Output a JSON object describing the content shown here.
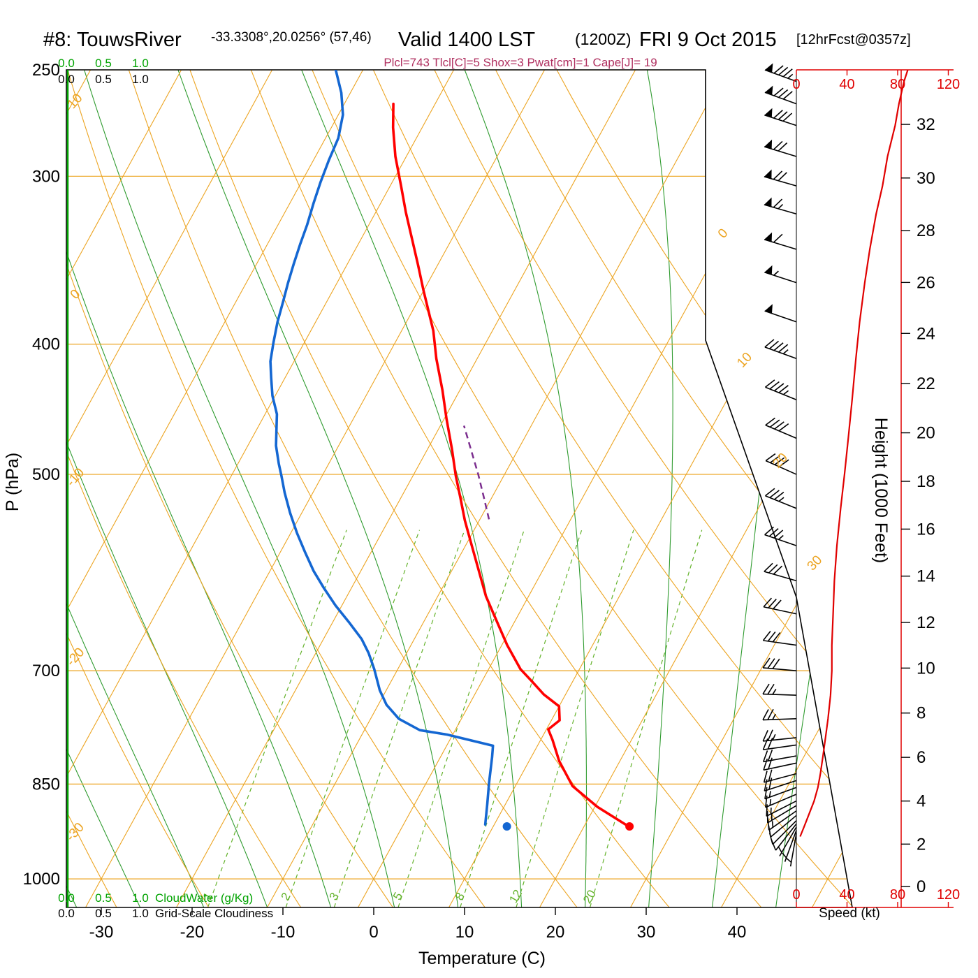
{
  "header": {
    "station": "#8: TouwsRiver",
    "coords": "-33.3308°,20.0256° (57,46)",
    "valid": "Valid 1400 LST",
    "valid_z": "(1200Z)",
    "date": "FRI 9 Oct 2015",
    "fcst": "[12hrFcst@0357z]",
    "indices": "Plcl=743 Tlcl[C]=5 Shox=3 Pwat[cm]=1 Cape[J]= 19"
  },
  "axes": {
    "pressure_label": "P (hPa)",
    "pressure_ticks": [
      250,
      300,
      400,
      500,
      700,
      850,
      1000
    ],
    "temperature_label": "Temperature (C)",
    "temperature_ticks": [
      -30,
      -20,
      -10,
      0,
      10,
      20,
      30,
      40
    ],
    "height_label": "Height (1000 Feet)",
    "height_ticks": [
      0,
      2,
      4,
      6,
      8,
      10,
      12,
      14,
      16,
      18,
      20,
      22,
      24,
      26,
      28,
      30,
      32
    ],
    "speed_label": "Speed (kt)",
    "speed_ticks": [
      0,
      40,
      80,
      120
    ],
    "cloudwater_label": "CloudWater (g/Kg)",
    "cloudiness_label": "Grid-Scale Cloudiness",
    "cloud_scale_ticks": [
      "0.0",
      "0.5",
      "1.0"
    ],
    "dry_adiabat_labels": [
      10,
      0,
      -10,
      -20,
      -30
    ],
    "isotherm_labels": [
      0,
      10,
      20,
      30
    ],
    "mixing_ratio_labels": [
      1,
      2,
      3,
      5,
      8,
      12,
      20
    ]
  },
  "colors": {
    "grid_orange": "#eca421",
    "moist_green": "#2f9b2f",
    "mixing_green": "#63b22a",
    "axis_green": "#00a300",
    "temp_red": "#ff0000",
    "dew_blue": "#1467d2",
    "parcel_purple": "#7b2d8e",
    "indices_magenta": "#b03060",
    "speed_red": "#e00000",
    "black": "#000000"
  },
  "chart_data": {
    "type": "skewt-logp",
    "pressure_range_hpa": [
      250,
      1050
    ],
    "temperature_axis_range_c": [
      -30,
      40
    ],
    "temperature_profile": [
      [
        914,
        24.9
      ],
      [
        884,
        20.3
      ],
      [
        853,
        16.3
      ],
      [
        817,
        13.3
      ],
      [
        788,
        11.3
      ],
      [
        774,
        10.2
      ],
      [
        762,
        10.9
      ],
      [
        744,
        10.0
      ],
      [
        729,
        7.6
      ],
      [
        712,
        5.4
      ],
      [
        698,
        3.5
      ],
      [
        670,
        0.6
      ],
      [
        642,
        -2.1
      ],
      [
        616,
        -4.7
      ],
      [
        590,
        -7.0
      ],
      [
        565,
        -9.3
      ],
      [
        541,
        -11.6
      ],
      [
        521,
        -13.4
      ],
      [
        501,
        -15.3
      ],
      [
        479,
        -17.3
      ],
      [
        454,
        -19.8
      ],
      [
        433,
        -21.9
      ],
      [
        410,
        -24.5
      ],
      [
        391,
        -26.5
      ],
      [
        365,
        -30.0
      ],
      [
        349,
        -32.2
      ],
      [
        334,
        -34.4
      ],
      [
        319,
        -36.7
      ],
      [
        305,
        -38.8
      ],
      [
        290,
        -41.2
      ],
      [
        276,
        -43.2
      ],
      [
        265,
        -44.6
      ]
    ],
    "dewpoint_profile": [
      [
        911,
        9.0
      ],
      [
        880,
        8.0
      ],
      [
        848,
        6.9
      ],
      [
        812,
        5.7
      ],
      [
        796,
        5.1
      ],
      [
        781,
        -0.6
      ],
      [
        775,
        -3.9
      ],
      [
        760,
        -6.9
      ],
      [
        742,
        -9.1
      ],
      [
        724,
        -10.7
      ],
      [
        698,
        -12.6
      ],
      [
        679,
        -14.2
      ],
      [
        663,
        -15.8
      ],
      [
        645,
        -18.1
      ],
      [
        626,
        -20.7
      ],
      [
        607,
        -23.1
      ],
      [
        590,
        -25.2
      ],
      [
        572,
        -27.2
      ],
      [
        553,
        -29.3
      ],
      [
        534,
        -31.3
      ],
      [
        516,
        -33.1
      ],
      [
        501,
        -34.5
      ],
      [
        491,
        -35.5
      ],
      [
        476,
        -36.9
      ],
      [
        451,
        -38.7
      ],
      [
        437,
        -40.3
      ],
      [
        424,
        -41.5
      ],
      [
        412,
        -42.6
      ],
      [
        399,
        -43.4
      ],
      [
        385,
        -44.2
      ],
      [
        372,
        -44.8
      ],
      [
        360,
        -45.4
      ],
      [
        349,
        -45.9
      ],
      [
        337,
        -46.4
      ],
      [
        326,
        -46.8
      ],
      [
        314,
        -47.4
      ],
      [
        303,
        -47.9
      ],
      [
        292,
        -48.3
      ],
      [
        281,
        -48.6
      ],
      [
        270,
        -49.5
      ],
      [
        260,
        -51.0
      ],
      [
        250,
        -53.0
      ]
    ],
    "parcel_path": [
      [
        540,
        -9.0
      ],
      [
        520,
        -10.9
      ],
      [
        500,
        -12.9
      ],
      [
        480,
        -15.1
      ],
      [
        460,
        -17.4
      ]
    ],
    "surface_temp_dot": [
      914,
      25.0
    ],
    "surface_dew_dot": [
      914,
      11.5
    ],
    "wind_barbs": [
      [
        925,
        190,
        5
      ],
      [
        920,
        200,
        6
      ],
      [
        915,
        210,
        7
      ],
      [
        910,
        218,
        8
      ],
      [
        905,
        225,
        10
      ],
      [
        897,
        230,
        12
      ],
      [
        890,
        235,
        13
      ],
      [
        882,
        239,
        14
      ],
      [
        875,
        243,
        15
      ],
      [
        865,
        247,
        16
      ],
      [
        855,
        250,
        17
      ],
      [
        845,
        252,
        18
      ],
      [
        835,
        255,
        19
      ],
      [
        820,
        258,
        20
      ],
      [
        810,
        260,
        21
      ],
      [
        795,
        262,
        22
      ],
      [
        785,
        264,
        23
      ],
      [
        760,
        268,
        25
      ],
      [
        730,
        272,
        27
      ],
      [
        700,
        275,
        28
      ],
      [
        670,
        278,
        29
      ],
      [
        635,
        282,
        30
      ],
      [
        600,
        286,
        31
      ],
      [
        565,
        289,
        33
      ],
      [
        530,
        292,
        35
      ],
      [
        500,
        294,
        38
      ],
      [
        470,
        293,
        41
      ],
      [
        440,
        292,
        44
      ],
      [
        410,
        290,
        47
      ],
      [
        385,
        289,
        50
      ],
      [
        360,
        288,
        54
      ],
      [
        340,
        287,
        58
      ],
      [
        320,
        286,
        63
      ],
      [
        305,
        286,
        68
      ],
      [
        290,
        287,
        72
      ],
      [
        275,
        288,
        78
      ],
      [
        265,
        290,
        80
      ],
      [
        255,
        290,
        85
      ]
    ],
    "speed_profile_kt": [
      [
        930,
        3
      ],
      [
        915,
        6
      ],
      [
        905,
        8
      ],
      [
        890,
        11
      ],
      [
        875,
        14
      ],
      [
        855,
        17
      ],
      [
        835,
        19
      ],
      [
        810,
        21
      ],
      [
        785,
        23
      ],
      [
        760,
        25
      ],
      [
        730,
        27
      ],
      [
        700,
        28
      ],
      [
        670,
        28
      ],
      [
        635,
        29
      ],
      [
        600,
        30
      ],
      [
        565,
        32
      ],
      [
        530,
        35
      ],
      [
        500,
        38
      ],
      [
        470,
        41
      ],
      [
        440,
        44
      ],
      [
        410,
        47
      ],
      [
        385,
        50
      ],
      [
        360,
        54
      ],
      [
        340,
        58
      ],
      [
        320,
        63
      ],
      [
        305,
        68
      ],
      [
        290,
        72
      ],
      [
        275,
        78
      ],
      [
        265,
        81
      ],
      [
        255,
        85
      ],
      [
        250,
        88
      ]
    ]
  }
}
